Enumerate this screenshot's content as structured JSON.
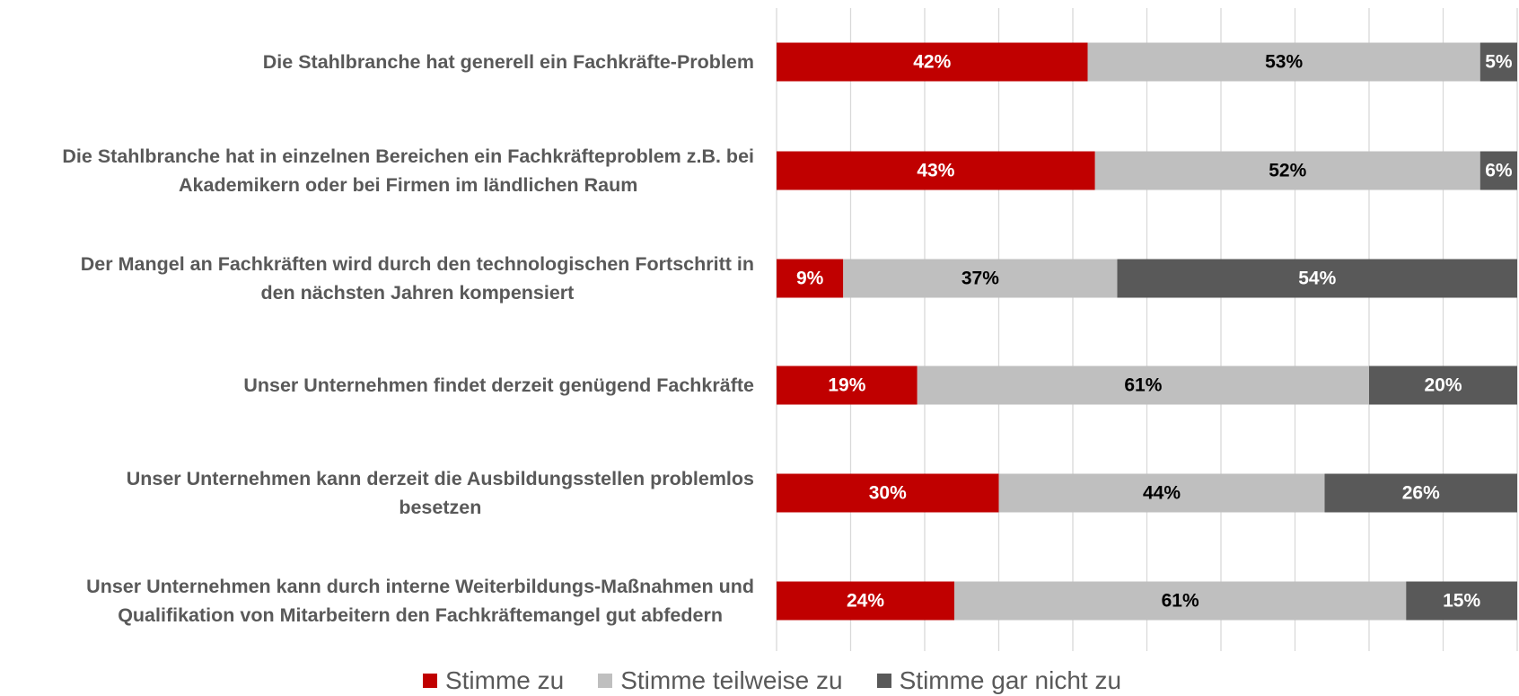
{
  "chart_data": {
    "type": "stacked_bar_horizontal",
    "categories": [
      [
        "Die Stahlbranche hat generell ein Fachkräfte-Problem"
      ],
      [
        "Die Stahlbranche hat in einzelnen Bereichen ein Fachkräfteproblem z.B. bei",
        "Akademikern oder bei Firmen im ländlichen Raum"
      ],
      [
        "Der Mangel an Fachkräften wird durch den technologischen Fortschritt in",
        "den nächsten Jahren kompensiert"
      ],
      [
        "Unser Unternehmen findet derzeit genügend Fachkräfte"
      ],
      [
        "Unser Unternehmen kann derzeit die Ausbildungsstellen problemlos",
        "besetzen"
      ],
      [
        "Unser Unternehmen kann durch interne Weiterbildungs-Maßnahmen und",
        "Qualifikation von Mitarbeitern den Fachkräftemangel gut abfedern"
      ]
    ],
    "series": [
      {
        "name": "Stimme zu",
        "color": "#c00000",
        "label_color": "#ffffff",
        "values": [
          42,
          43,
          9,
          19,
          30,
          24
        ],
        "value_labels": [
          "42%",
          "43%",
          "9%",
          "19%",
          "30%",
          "24%"
        ]
      },
      {
        "name": "Stimme teilweise zu",
        "color": "#bfbfbf",
        "label_color": "#000000",
        "values": [
          53,
          52,
          37,
          61,
          44,
          61
        ],
        "value_labels": [
          "53%",
          "52%",
          "37%",
          "61%",
          "44%",
          "61%"
        ]
      },
      {
        "name": "Stimme gar nicht zu",
        "color": "#595959",
        "label_color": "#ffffff",
        "values": [
          5,
          6,
          54,
          20,
          26,
          15
        ],
        "value_labels": [
          "5%",
          "6%",
          "54%",
          "20%",
          "26%",
          "15%"
        ]
      }
    ],
    "xlim": [
      0,
      100
    ],
    "xticks": [
      0,
      10,
      20,
      30,
      40,
      50,
      60,
      70,
      80,
      90,
      100
    ],
    "grid": true,
    "legend": "bottom"
  }
}
